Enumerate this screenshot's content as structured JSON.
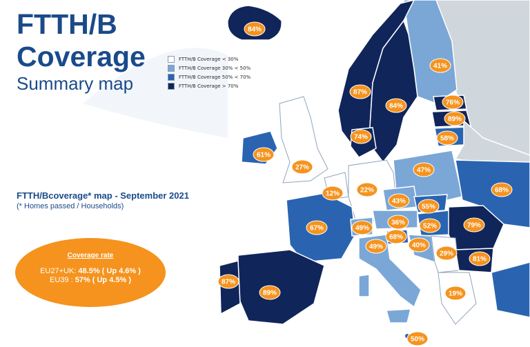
{
  "title": {
    "line1": "FTTH/B",
    "line2": "Coverage",
    "line3": "Summary map"
  },
  "legend": {
    "items": [
      {
        "label": "FTTH/B Coverage < 30%",
        "color": "#ffffff"
      },
      {
        "label": "FTTH/B Coverage 30% < 50%",
        "color": "#7aa7d6"
      },
      {
        "label": "FTTH/B Coverage 50% < 70%",
        "color": "#2a64b1"
      },
      {
        "label": "FTTH/B Coverage > 70%",
        "color": "#10255a"
      }
    ]
  },
  "caption": {
    "title": "FTTH/Bcoverage* map - September 2021",
    "subtitle": "(* Homes passed / Households)"
  },
  "coverage_rate": {
    "title": "Coverage rate",
    "eu27_label": "EU27+UK: ",
    "eu27_value": "48.5% ( Up 4.6% )",
    "eu39_label": "EU39 : ",
    "eu39_value": "57% ( Up 4.5% )"
  },
  "colors": {
    "accent_orange": "#f5931e",
    "title_blue": "#1a4a8a",
    "non_member_grey": "#cfd6dc",
    "border": "#ffffff"
  },
  "map_labels": [
    {
      "country": "Iceland",
      "value": "84%"
    },
    {
      "country": "Finland",
      "value": "41%"
    },
    {
      "country": "Norway",
      "value": "87%"
    },
    {
      "country": "Sweden",
      "value": "84%"
    },
    {
      "country": "Estonia",
      "value": "76%"
    },
    {
      "country": "Latvia",
      "value": "89%"
    },
    {
      "country": "Lithuania",
      "value": "58%"
    },
    {
      "country": "Denmark",
      "value": "74%"
    },
    {
      "country": "Ireland",
      "value": "61%"
    },
    {
      "country": "United Kingdom",
      "value": "27%"
    },
    {
      "country": "Poland",
      "value": "47%"
    },
    {
      "country": "Belarus",
      "value": ""
    },
    {
      "country": "Ukraine",
      "value": "68%"
    },
    {
      "country": "Netherlands",
      "value": "12%"
    },
    {
      "country": "Germany",
      "value": "22%"
    },
    {
      "country": "Czechia",
      "value": "43%"
    },
    {
      "country": "Slovakia",
      "value": "55%"
    },
    {
      "country": "France",
      "value": "67%"
    },
    {
      "country": "Switzerland",
      "value": "49%"
    },
    {
      "country": "Austria",
      "value": "36%"
    },
    {
      "country": "Hungary",
      "value": "52%"
    },
    {
      "country": "Romania",
      "value": "79%"
    },
    {
      "country": "Slovenia",
      "value": "68%"
    },
    {
      "country": "Italy",
      "value": "49%"
    },
    {
      "country": "Croatia",
      "value": "40%"
    },
    {
      "country": "Serbia",
      "value": "29%"
    },
    {
      "country": "Bulgaria",
      "value": "81%"
    },
    {
      "country": "Portugal",
      "value": "87%"
    },
    {
      "country": "Spain",
      "value": "89%"
    },
    {
      "country": "Greece",
      "value": "19%"
    },
    {
      "country": "Malta",
      "value": "50%"
    }
  ]
}
